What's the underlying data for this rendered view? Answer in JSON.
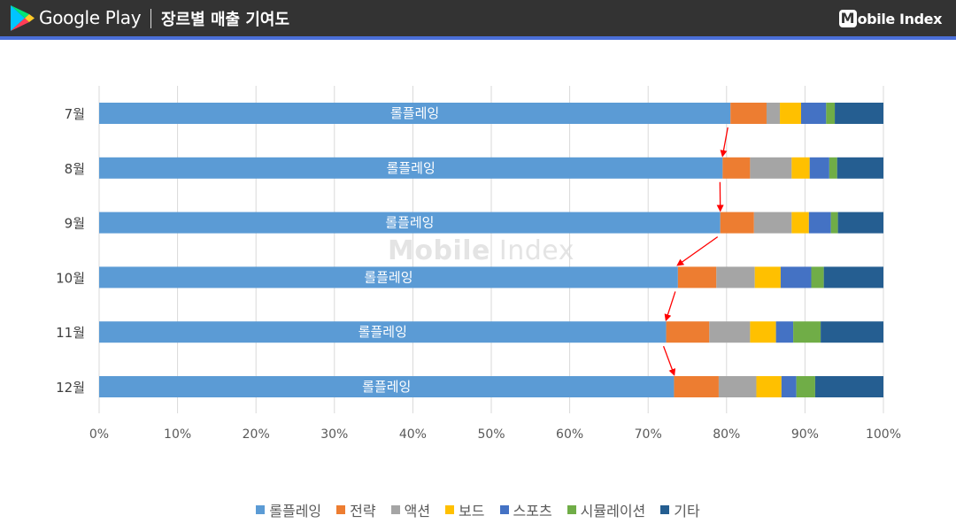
{
  "header": {
    "brand_name": "Google Play",
    "title": "장르별 매출 기여도",
    "logo_mark": "M",
    "logo_text": "obile Index",
    "background_color": "#333333",
    "accent_color": "#4a6fd8"
  },
  "watermark": {
    "bold": "Mobile",
    "light": "Index"
  },
  "chart_data": {
    "type": "bar",
    "orientation": "horizontal",
    "stacked": "percent",
    "title": "",
    "xlabel": "",
    "ylabel": "",
    "xlim": [
      0,
      100
    ],
    "x_ticks": [
      "0%",
      "10%",
      "20%",
      "30%",
      "40%",
      "50%",
      "60%",
      "70%",
      "80%",
      "90%",
      "100%"
    ],
    "grid": "vertical",
    "legend_position": "bottom",
    "categories": [
      "7월",
      "8월",
      "9월",
      "10월",
      "11월",
      "12월"
    ],
    "series": [
      {
        "name": "롤플레잉",
        "color": "#5b9bd5",
        "values": [
          80.5,
          79.5,
          79.2,
          73.8,
          72.3,
          73.3
        ],
        "label": "롤플레잉"
      },
      {
        "name": "전략",
        "color": "#ed7d31",
        "values": [
          4.6,
          3.5,
          4.3,
          4.9,
          5.5,
          5.7
        ]
      },
      {
        "name": "액션",
        "color": "#a5a5a5",
        "values": [
          1.7,
          5.3,
          4.8,
          4.9,
          5.2,
          4.8
        ]
      },
      {
        "name": "보드",
        "color": "#ffc000",
        "values": [
          2.7,
          2.3,
          2.2,
          3.3,
          3.3,
          3.2
        ]
      },
      {
        "name": "스포츠",
        "color": "#4472c4",
        "values": [
          3.2,
          2.5,
          2.8,
          3.9,
          2.2,
          1.9
        ]
      },
      {
        "name": "시뮬레이션",
        "color": "#70ad47",
        "values": [
          1.1,
          1.0,
          0.9,
          1.6,
          3.5,
          2.4
        ]
      },
      {
        "name": "기타",
        "color": "#255e91",
        "values": [
          6.2,
          5.9,
          5.8,
          7.6,
          8.0,
          8.7
        ]
      }
    ],
    "annotations": {
      "type": "trend-arrows",
      "color": "#ff0000",
      "between": "롤플레잉 segment ends of consecutive months"
    }
  }
}
